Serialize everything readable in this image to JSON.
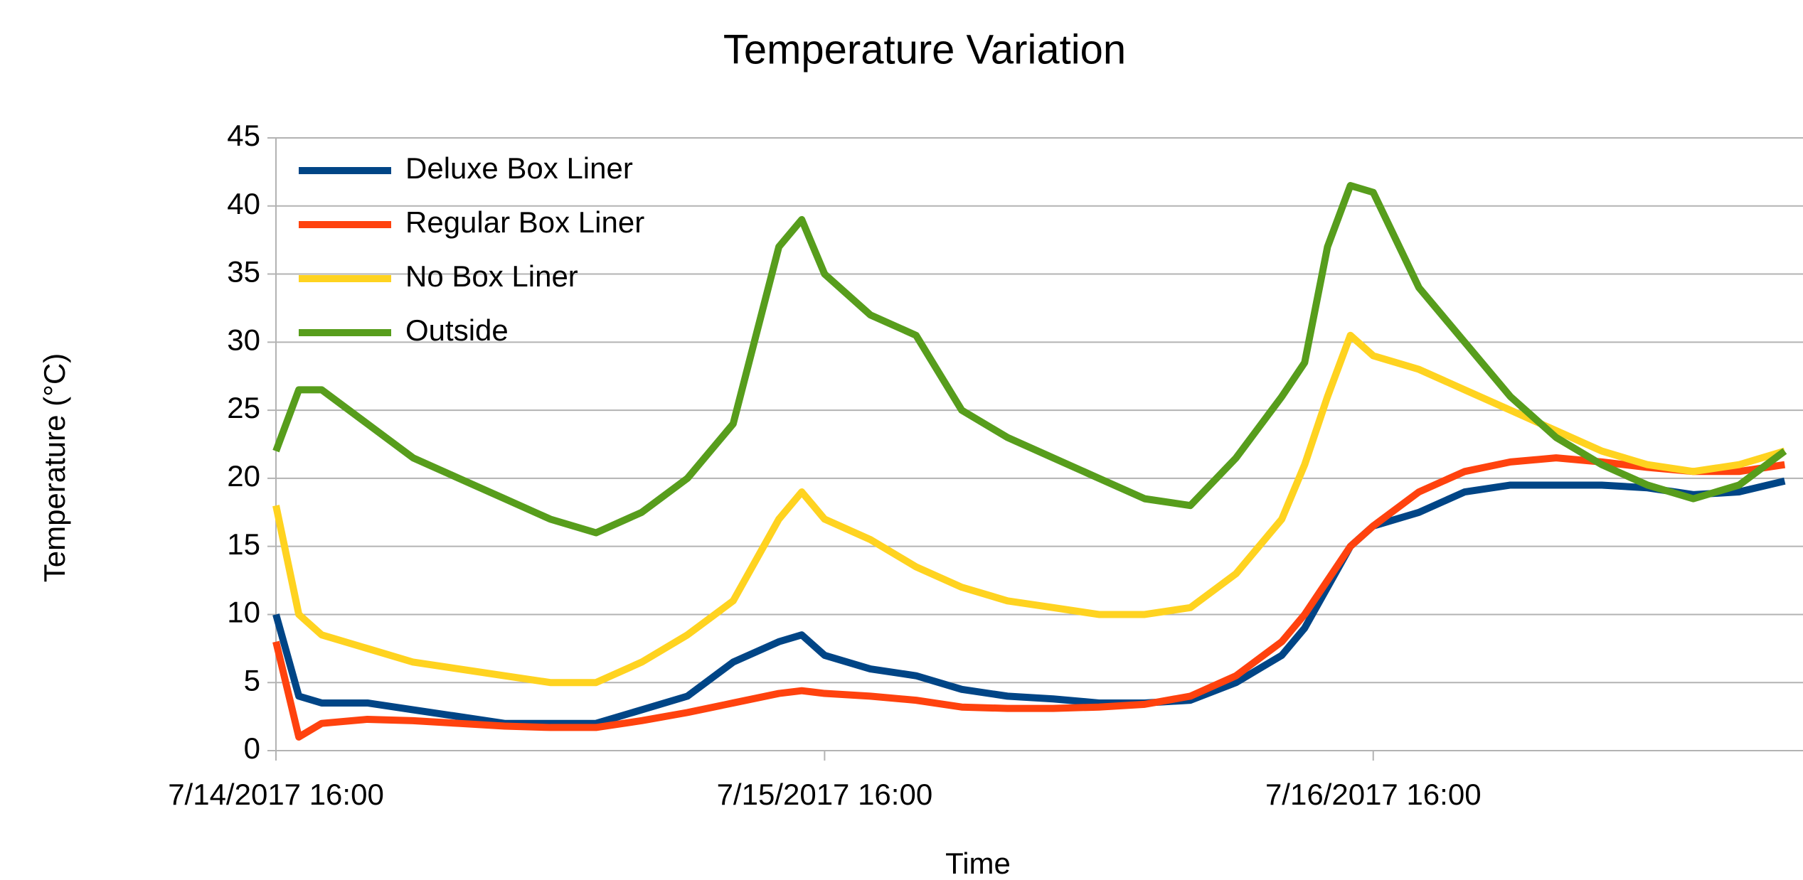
{
  "chart_data": {
    "type": "line",
    "title": "Temperature Variation",
    "xlabel": "Time",
    "ylabel": "Temperature (°C)",
    "x": [
      "2017-07-14T16:00",
      "2017-07-14T17:00",
      "2017-07-14T18:00",
      "2017-07-14T20:00",
      "2017-07-14T22:00",
      "2017-07-15T00:00",
      "2017-07-15T02:00",
      "2017-07-15T04:00",
      "2017-07-15T06:00",
      "2017-07-15T08:00",
      "2017-07-15T10:00",
      "2017-07-15T12:00",
      "2017-07-15T14:00",
      "2017-07-15T15:00",
      "2017-07-15T16:00",
      "2017-07-15T18:00",
      "2017-07-15T20:00",
      "2017-07-15T22:00",
      "2017-07-16T00:00",
      "2017-07-16T02:00",
      "2017-07-16T04:00",
      "2017-07-16T06:00",
      "2017-07-16T08:00",
      "2017-07-16T10:00",
      "2017-07-16T12:00",
      "2017-07-16T13:00",
      "2017-07-16T14:00",
      "2017-07-16T15:00",
      "2017-07-16T16:00",
      "2017-07-16T18:00",
      "2017-07-16T20:00",
      "2017-07-16T22:00",
      "2017-07-17T00:00",
      "2017-07-17T02:00",
      "2017-07-17T04:00",
      "2017-07-17T06:00",
      "2017-07-17T08:00",
      "2017-07-17T10:00"
    ],
    "series": [
      {
        "name": "Deluxe Box Liner",
        "color": "#004586",
        "values": [
          10,
          4,
          3.5,
          3.5,
          3,
          2.5,
          2,
          2,
          2,
          3,
          4,
          6.5,
          8,
          8.5,
          7,
          6,
          5.5,
          4.5,
          4,
          3.8,
          3.5,
          3.5,
          3.7,
          5,
          7,
          9,
          12,
          15,
          16.5,
          17.5,
          19,
          19.5,
          19.5,
          19.5,
          19.3,
          18.8,
          19,
          19.8
        ]
      },
      {
        "name": "Regular Box Liner",
        "color": "#ff420e",
        "values": [
          8,
          1,
          2,
          2.3,
          2.2,
          2,
          1.8,
          1.7,
          1.7,
          2.2,
          2.8,
          3.5,
          4.2,
          4.4,
          4.2,
          4,
          3.7,
          3.2,
          3.1,
          3.1,
          3.2,
          3.4,
          4,
          5.5,
          8,
          10,
          12.5,
          15,
          16.5,
          19,
          20.5,
          21.2,
          21.5,
          21.2,
          20.8,
          20.5,
          20.5,
          21
        ]
      },
      {
        "name": "No Box Liner",
        "color": "#ffd320",
        "values": [
          18,
          10,
          8.5,
          7.5,
          6.5,
          6,
          5.5,
          5,
          5,
          6.5,
          8.5,
          11,
          17,
          19,
          17,
          15.5,
          13.5,
          12,
          11,
          10.5,
          10,
          10,
          10.5,
          13,
          17,
          21,
          26,
          30.5,
          29,
          28,
          26.5,
          25,
          23.5,
          22,
          21,
          20.5,
          21,
          22
        ]
      },
      {
        "name": "Outside",
        "color": "#579d1c",
        "values": [
          22,
          26.5,
          26.5,
          24,
          21.5,
          20,
          18.5,
          17,
          16,
          17.5,
          20,
          24,
          37,
          39,
          35,
          32,
          30.5,
          25,
          23,
          21.5,
          20,
          18.5,
          18,
          21.5,
          26,
          28.5,
          37,
          41.5,
          41,
          34,
          30,
          26,
          23,
          21,
          19.5,
          18.5,
          19.5,
          22
        ]
      }
    ],
    "xlim": [
      "2017-07-14T16:00",
      "2017-07-17T10:48"
    ],
    "xticks": [
      {
        "value": "2017-07-14T16:00",
        "label": "7/14/2017 16:00"
      },
      {
        "value": "2017-07-15T16:00",
        "label": "7/15/2017 16:00"
      },
      {
        "value": "2017-07-16T16:00",
        "label": "7/16/2017 16:00"
      }
    ],
    "ylim": [
      0,
      45
    ],
    "yticks": [
      0,
      5,
      10,
      15,
      20,
      25,
      30,
      35,
      40,
      45
    ],
    "grid": true,
    "legend": "upper left"
  }
}
